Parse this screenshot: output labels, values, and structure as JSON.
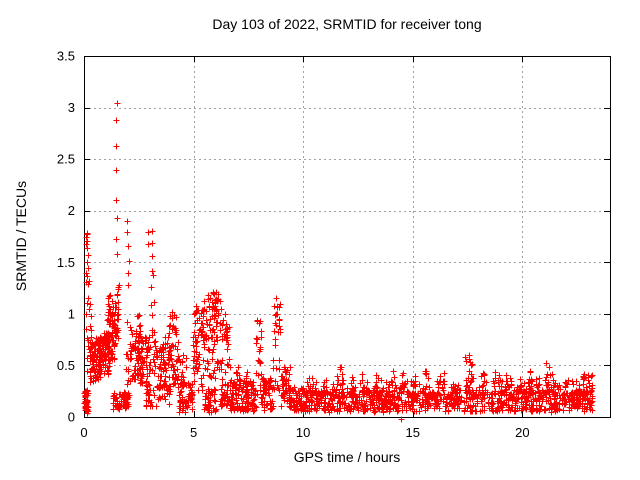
{
  "chart_data": {
    "type": "scatter",
    "title": "Day 103 of 2022, SRMTID for receiver tong",
    "xlabel": "GPS time / hours",
    "ylabel": "SRMTID / TECUs",
    "xlim": [
      0,
      24
    ],
    "ylim": [
      0,
      3.5
    ],
    "xticks": [
      0,
      5,
      10,
      15,
      20
    ],
    "xtick_labels": [
      "0",
      "5",
      "10",
      "15",
      "20"
    ],
    "yticks": [
      0,
      0.5,
      1,
      1.5,
      2,
      2.5,
      3,
      3.5
    ],
    "ytick_labels": [
      "0",
      "0.5",
      "1",
      "1.5",
      "2",
      "2.5",
      "3",
      "3.5"
    ],
    "grid": true,
    "legend": "none",
    "marker": "plus",
    "x_data_range": [
      0,
      23.2
    ],
    "max_point": [
      1.49,
      3.04
    ],
    "colors": {
      "marker": "#ff0000",
      "grid": "#a0a0a0",
      "axis": "#000000",
      "background": "#ffffff",
      "text": "#000000"
    },
    "clusters": [
      [
        0.02,
        0.18,
        0.04,
        0.26,
        45
      ],
      [
        0.08,
        0.32,
        0.3,
        1.82,
        22
      ],
      [
        0.25,
        0.75,
        0.33,
        0.78,
        85
      ],
      [
        0.7,
        1.15,
        0.42,
        0.82,
        85
      ],
      [
        1.05,
        1.4,
        0.55,
        1.22,
        65
      ],
      [
        1.38,
        1.58,
        0.65,
        1.3,
        25
      ],
      [
        1.3,
        2.05,
        0.08,
        0.24,
        70
      ],
      [
        1.92,
        2.12,
        0.3,
        1.05,
        14
      ],
      [
        2.1,
        2.65,
        0.33,
        0.85,
        55
      ],
      [
        2.42,
        2.58,
        0.55,
        1.0,
        12
      ],
      [
        2.6,
        3.05,
        0.3,
        0.8,
        45
      ],
      [
        2.8,
        3.3,
        0.1,
        0.3,
        20
      ],
      [
        3.05,
        3.22,
        0.35,
        1.5,
        14
      ],
      [
        3.2,
        3.9,
        0.25,
        0.78,
        60
      ],
      [
        3.3,
        3.9,
        0.1,
        0.3,
        18
      ],
      [
        3.88,
        4.3,
        0.25,
        1.0,
        55
      ],
      [
        4.3,
        4.95,
        0.05,
        0.35,
        55
      ],
      [
        4.3,
        4.7,
        0.3,
        0.65,
        15
      ],
      [
        4.95,
        5.45,
        0.25,
        1.05,
        55
      ],
      [
        5.4,
        6.15,
        0.35,
        1.2,
        75
      ],
      [
        5.45,
        6.05,
        0.05,
        0.28,
        40
      ],
      [
        5.88,
        6.12,
        0.95,
        1.25,
        15
      ],
      [
        6.15,
        6.7,
        0.25,
        1.0,
        42
      ],
      [
        6.2,
        6.6,
        0.08,
        0.25,
        25
      ],
      [
        6.65,
        7.85,
        0.06,
        0.36,
        120
      ],
      [
        6.95,
        7.1,
        0.2,
        0.5,
        8
      ],
      [
        7.35,
        7.5,
        0.2,
        0.45,
        8
      ],
      [
        7.86,
        8.1,
        0.22,
        0.98,
        22
      ],
      [
        8.08,
        8.62,
        0.07,
        0.38,
        55
      ],
      [
        8.6,
        8.98,
        0.2,
        1.1,
        28
      ],
      [
        8.95,
        9.4,
        0.1,
        0.5,
        38
      ],
      [
        9.35,
        10.15,
        0.05,
        0.3,
        70
      ],
      [
        10.1,
        23.2,
        0.05,
        0.26,
        800
      ],
      [
        10.1,
        22.6,
        0.2,
        0.36,
        150
      ],
      [
        10.25,
        10.45,
        0.18,
        0.4,
        9
      ],
      [
        10.85,
        11.05,
        0.18,
        0.42,
        9
      ],
      [
        11.55,
        11.8,
        0.2,
        0.5,
        12
      ],
      [
        12.05,
        12.3,
        0.18,
        0.4,
        9
      ],
      [
        12.65,
        12.9,
        0.18,
        0.42,
        10
      ],
      [
        13.25,
        13.5,
        0.18,
        0.42,
        10
      ],
      [
        13.85,
        14.15,
        0.18,
        0.45,
        10
      ],
      [
        14.4,
        14.65,
        0.2,
        0.5,
        10
      ],
      [
        14.95,
        15.15,
        0.18,
        0.45,
        9
      ],
      [
        15.5,
        15.75,
        0.18,
        0.45,
        10
      ],
      [
        16.2,
        16.45,
        0.18,
        0.48,
        10
      ],
      [
        16.9,
        17.1,
        0.15,
        0.38,
        9
      ],
      [
        17.35,
        17.75,
        0.2,
        0.58,
        16
      ],
      [
        18.1,
        18.35,
        0.18,
        0.45,
        10
      ],
      [
        18.7,
        18.95,
        0.18,
        0.45,
        10
      ],
      [
        19.25,
        19.5,
        0.18,
        0.42,
        10
      ],
      [
        19.75,
        19.95,
        0.15,
        0.38,
        8
      ],
      [
        20.15,
        20.4,
        0.18,
        0.45,
        10
      ],
      [
        20.6,
        20.8,
        0.15,
        0.4,
        8
      ],
      [
        21.0,
        21.35,
        0.2,
        0.5,
        12
      ],
      [
        21.9,
        22.1,
        0.15,
        0.38,
        8
      ],
      [
        22.55,
        23.2,
        0.12,
        0.42,
        40
      ]
    ],
    "outlier_points": [
      [
        0.14,
        1.78
      ],
      [
        0.15,
        1.71
      ],
      [
        0.13,
        1.64
      ],
      [
        0.16,
        1.57
      ],
      [
        0.14,
        1.5
      ],
      [
        0.17,
        1.44
      ],
      [
        0.15,
        1.37
      ],
      [
        0.18,
        1.29
      ],
      [
        1.49,
        3.04
      ],
      [
        1.44,
        2.88
      ],
      [
        1.45,
        2.63
      ],
      [
        1.45,
        2.39
      ],
      [
        1.46,
        2.1
      ],
      [
        1.5,
        1.93
      ],
      [
        1.48,
        1.73
      ],
      [
        1.52,
        1.58
      ],
      [
        1.98,
        1.9
      ],
      [
        1.97,
        1.79
      ],
      [
        1.99,
        1.66
      ],
      [
        2.07,
        1.51
      ],
      [
        2.0,
        1.4
      ],
      [
        2.03,
        1.28
      ],
      [
        2.9,
        1.79
      ],
      [
        2.92,
        1.68
      ],
      [
        3.1,
        1.8
      ],
      [
        3.11,
        1.69
      ],
      [
        3.12,
        1.56
      ],
      [
        3.1,
        1.42
      ],
      [
        4.02,
        1.02
      ],
      [
        5.1,
        1.08
      ],
      [
        6.2,
        1.12
      ],
      [
        6.24,
        1.05
      ],
      [
        8.77,
        1.15
      ],
      [
        8.79,
        1.08
      ],
      [
        8.75,
        1.0
      ],
      [
        11.68,
        0.47
      ],
      [
        14.45,
        -0.02
      ],
      [
        17.55,
        0.6
      ],
      [
        21.1,
        0.52
      ],
      [
        22.8,
        0.42
      ]
    ]
  }
}
